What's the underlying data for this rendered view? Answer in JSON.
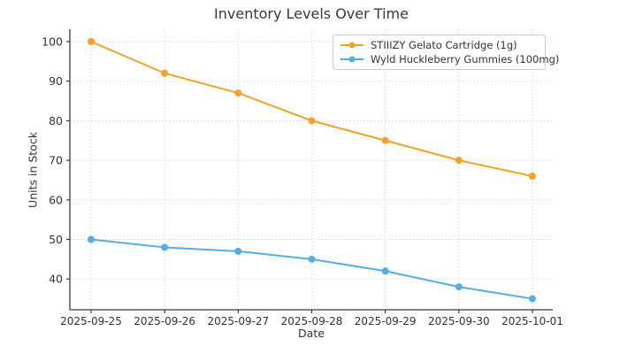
{
  "chart_data": {
    "type": "line",
    "title": "Inventory Levels Over Time",
    "xlabel": "Date",
    "ylabel": "Units in Stock",
    "categories": [
      "2025-09-25",
      "2025-09-26",
      "2025-09-27",
      "2025-09-28",
      "2025-09-29",
      "2025-09-30",
      "2025-10-01"
    ],
    "series": [
      {
        "name": "STIIIZY Gelato Cartridge (1g)",
        "color": "#f0a32c",
        "values": [
          100,
          92,
          87,
          80,
          75,
          70,
          66
        ]
      },
      {
        "name": "Wyld Huckleberry Gummies (100mg)",
        "color": "#55ade4",
        "values": [
          50,
          48,
          47,
          45,
          42,
          38,
          35
        ]
      }
    ],
    "yticks": [
      40,
      50,
      60,
      70,
      80,
      90,
      100
    ],
    "ylim": [
      32.5,
      103.5
    ],
    "grid": true,
    "grid_style": "dotted",
    "legend_position": "upper right",
    "colors": {
      "background": "#ffffff",
      "axis_spine": "#3b3b3b",
      "grid": "#d9d9d9",
      "text": "#333333",
      "title_text": "#383838"
    }
  }
}
